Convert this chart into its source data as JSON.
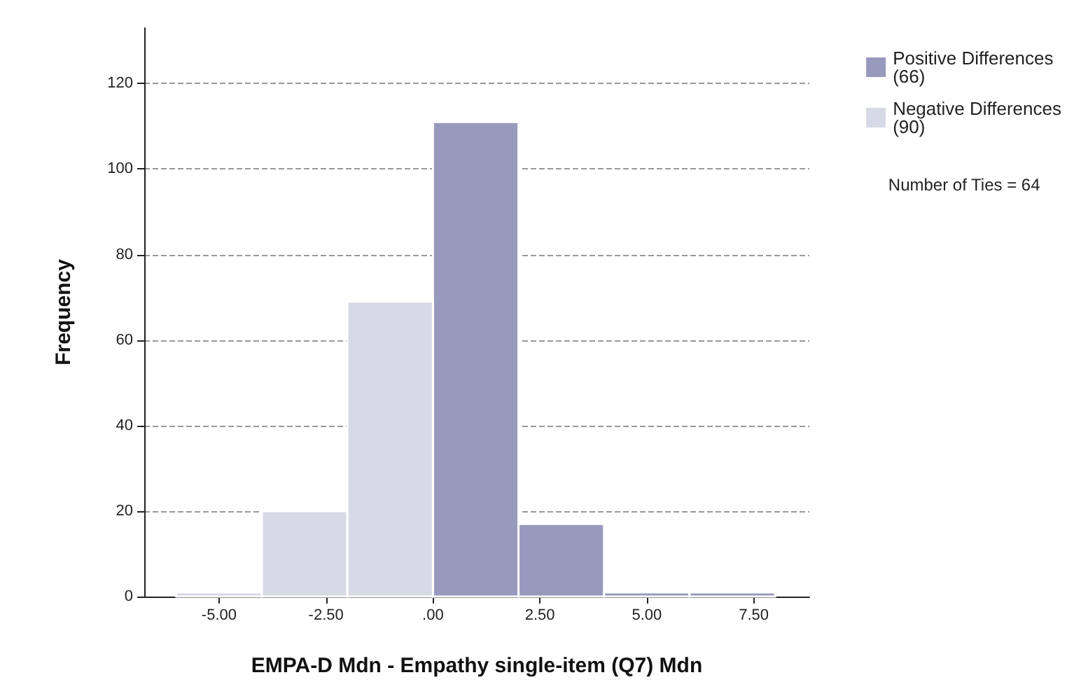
{
  "chart_data": {
    "type": "histogram",
    "xlabel": "EMPA-D Mdn - Empathy single-item (Q7) Mdn",
    "ylabel": "Frequency",
    "bins": [
      -6,
      -4,
      -2,
      0,
      2,
      4,
      6,
      8
    ],
    "series": [
      {
        "name": "Positive Differences (66)",
        "color": "#989abd",
        "values": [
          null,
          null,
          null,
          111,
          17,
          1,
          1
        ]
      },
      {
        "name": "Negative Differences (90)",
        "color": "#d8d9e6",
        "values": [
          1,
          20,
          69,
          null,
          null,
          null,
          null
        ]
      }
    ],
    "xlim": [
      -6.75,
      8.8
    ],
    "ylim": [
      0,
      133
    ],
    "xticks": [
      {
        "value": -5,
        "label": "-5.00"
      },
      {
        "value": -2.5,
        "label": "-2.50"
      },
      {
        "value": 0,
        "label": ".00"
      },
      {
        "value": 2.5,
        "label": "2.50"
      },
      {
        "value": 5,
        "label": "5.00"
      },
      {
        "value": 7.5,
        "label": "7.50"
      }
    ],
    "yticks": [
      0,
      20,
      40,
      60,
      80,
      100,
      120
    ],
    "grid": "y",
    "legend": "top right",
    "annotations": [
      "Number of Ties = 64"
    ]
  }
}
